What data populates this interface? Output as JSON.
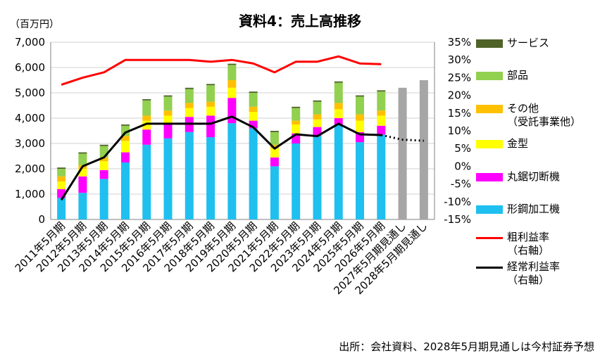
{
  "chart_data": {
    "type": "bar",
    "title": "資料4：売上高推移",
    "y_unit": "（百万円）",
    "source": "出所：会社資料、2028年5月期見通しは今村証券予想",
    "categories": [
      "2011年5月期",
      "2012年5月期",
      "2013年5月期",
      "2014年5月期",
      "2015年5月期",
      "2016年5月期",
      "2017年5月期",
      "2018年5月期",
      "2019年5月期",
      "2020年5月期",
      "2021年5月期",
      "2022年5月期",
      "2023年5月期",
      "2024年5月期",
      "2025年5月期",
      "2026年5月期",
      "2027年5月期見通し",
      "2028年5月期見通し"
    ],
    "ylim": [
      0,
      7000
    ],
    "y_ticks": [
      "0",
      "1,000",
      "2,000",
      "3,000",
      "4,000",
      "5,000",
      "6,000",
      "7,000"
    ],
    "y2lim": [
      -15,
      35
    ],
    "y2_ticks": [
      "-15%",
      "-10%",
      "-5%",
      "0%",
      "5%",
      "10%",
      "15%",
      "20%",
      "25%",
      "30%",
      "35%"
    ],
    "stacked_series": [
      {
        "name": "形鋼加工機",
        "color": "#1fbff0",
        "values": [
          850,
          1050,
          1600,
          2250,
          2950,
          3200,
          3450,
          3250,
          3800,
          3600,
          2100,
          3000,
          3300,
          3750,
          3050,
          3350,
          null,
          null
        ]
      },
      {
        "name": "丸鋸切断機",
        "color": "#ff00ff",
        "values": [
          350,
          650,
          350,
          400,
          600,
          550,
          600,
          850,
          1000,
          300,
          350,
          400,
          350,
          250,
          400,
          350,
          null,
          null
        ]
      },
      {
        "name": "金型",
        "color": "#ffff00",
        "values": [
          300,
          300,
          350,
          450,
          350,
          350,
          350,
          350,
          400,
          350,
          350,
          350,
          300,
          350,
          450,
          400,
          null,
          null
        ]
      },
      {
        "name": "その他\n（受託事業他）",
        "color": "#ffc000",
        "values": [
          200,
          150,
          150,
          200,
          200,
          200,
          200,
          200,
          300,
          200,
          150,
          150,
          200,
          250,
          250,
          200,
          null,
          null
        ]
      },
      {
        "name": "部品",
        "color": "#92d050",
        "values": [
          300,
          450,
          450,
          400,
          600,
          550,
          550,
          650,
          600,
          550,
          500,
          500,
          500,
          800,
          700,
          750,
          null,
          null
        ]
      },
      {
        "name": "サービス",
        "color": "#4f6228",
        "values": [
          50,
          50,
          50,
          50,
          50,
          50,
          50,
          50,
          50,
          50,
          50,
          50,
          50,
          50,
          50,
          50,
          null,
          null
        ]
      }
    ],
    "forecast_bars": {
      "color": "#a6a6a6",
      "values": [
        null,
        null,
        null,
        null,
        null,
        null,
        null,
        null,
        null,
        null,
        null,
        null,
        null,
        null,
        null,
        null,
        5200,
        5500
      ]
    },
    "lines": [
      {
        "name": "粗利益率\n（右軸）",
        "color": "#ff0000",
        "values": [
          23,
          25,
          26.5,
          30,
          30,
          30,
          30,
          29.5,
          30,
          29,
          26.5,
          29.5,
          29.5,
          31,
          29,
          28.8,
          null,
          null
        ]
      },
      {
        "name": "経常利益率\n（右軸）",
        "color": "#000000",
        "values": [
          -9.5,
          0,
          2.5,
          9.5,
          12,
          12,
          12,
          12,
          14,
          11,
          5,
          9,
          8.5,
          12,
          9,
          8.8,
          null,
          null
        ],
        "forecast_dotted": [
          null,
          null,
          null,
          null,
          null,
          null,
          null,
          null,
          null,
          null,
          null,
          null,
          null,
          null,
          null,
          8.8,
          7.5,
          7.2
        ]
      }
    ],
    "legend_position": "right",
    "grid": true
  }
}
